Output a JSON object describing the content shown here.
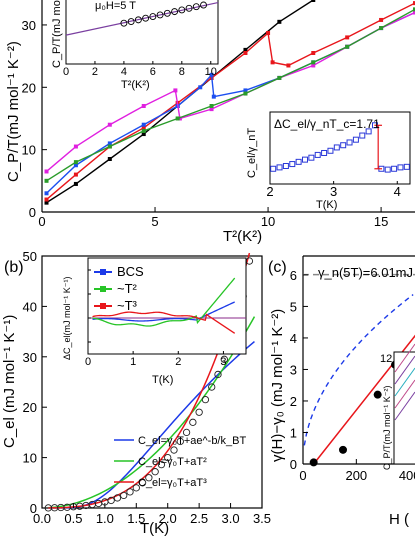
{
  "chart_data": [
    {
      "panel": "a",
      "type": "scatter",
      "xlabel": "T²(K²)",
      "ylabel": "C_P/T(mJ mol⁻¹ K⁻²)",
      "xlim": [
        0,
        16.5
      ],
      "ylim": [
        0,
        34
      ],
      "xticks": [
        "0",
        "5",
        "10",
        "15"
      ],
      "yticks": [
        "0",
        "10",
        "20",
        "30"
      ],
      "series": [
        {
          "color": "#000000",
          "x": [
            0.2,
            1.5,
            3,
            4.5,
            6,
            7.5,
            9,
            10.5,
            12,
            13.5
          ],
          "y": [
            1.5,
            4.5,
            8.5,
            12.5,
            17,
            21.5,
            26,
            30.5,
            34,
            38
          ]
        },
        {
          "color": "#e8161b",
          "x": [
            0.2,
            1.5,
            3,
            4.5,
            6,
            7.5,
            9,
            10,
            10.2,
            10.9,
            12,
            13.5,
            15,
            16.5
          ],
          "y": [
            2,
            6,
            10.5,
            13.5,
            17.5,
            21.5,
            25.5,
            28.7,
            24,
            23.5,
            25.5,
            28,
            30.8,
            33.5
          ]
        },
        {
          "color": "#1c4ff0",
          "x": [
            0.2,
            1.5,
            3,
            4.5,
            6,
            7,
            7.5,
            7.6,
            9,
            10.5,
            12,
            13.5,
            15,
            16.5
          ],
          "y": [
            3,
            7.5,
            11,
            14,
            17,
            20,
            22,
            18.5,
            19.5,
            21.5,
            24,
            26.5,
            29.5,
            32
          ]
        },
        {
          "color": "#e020e0",
          "x": [
            0.2,
            1.5,
            3,
            4.5,
            5.9,
            6.1,
            7.5,
            9,
            10.5,
            12,
            13.5,
            15,
            16.5
          ],
          "y": [
            6.5,
            10.5,
            14,
            17,
            19.5,
            15,
            16.5,
            19,
            21.5,
            23.5,
            26.5,
            29.5,
            32
          ]
        },
        {
          "color": "#2a9c2a",
          "x": [
            0.2,
            1.5,
            3,
            4.5,
            6,
            7.5,
            9,
            10.5,
            12,
            13.5,
            15,
            16.5
          ],
          "y": [
            5,
            8,
            10.5,
            13,
            15,
            17,
            19,
            21.5,
            24,
            26.5,
            29.5,
            32.5
          ]
        }
      ],
      "inset_top_left": {
        "label": "μ₀H=5 T",
        "xlabel": "T²(K²)",
        "ylabel": "C_P/T(mJ mol",
        "xticks": [
          "0",
          "2",
          "4",
          "6",
          "8",
          "10"
        ],
        "circles_x": [
          4,
          4.5,
          5,
          5.5,
          6,
          6.5,
          7,
          7.5,
          8,
          8.5,
          9,
          9.5
        ],
        "circles_y": [
          9.9,
          10.3,
          10.7,
          11.1,
          11.5,
          11.9,
          12.3,
          12.7,
          13.1,
          13.5,
          13.9,
          14.3
        ]
      },
      "inset_bottom_right": {
        "label": "ΔC_el/γ_nT_c=1.71",
        "xlabel": "T(K)",
        "ylabel": "C_el/γ_nT",
        "xticks": [
          "2",
          "3",
          "4"
        ],
        "x": [
          2.05,
          2.15,
          2.25,
          2.35,
          2.45,
          2.55,
          2.65,
          2.75,
          2.85,
          2.95,
          3.05,
          3.15,
          3.25,
          3.35,
          3.45,
          3.55,
          3.65,
          3.75,
          3.85,
          3.95,
          4.05,
          4.15
        ],
        "y": [
          1.05,
          1.1,
          1.15,
          1.22,
          1.3,
          1.38,
          1.45,
          1.55,
          1.62,
          1.7,
          1.82,
          1.9,
          2.0,
          2.1,
          2.25,
          2.4,
          2.62,
          1.05,
          1.02,
          1.05,
          1.1,
          1.12
        ]
      }
    },
    {
      "panel": "b",
      "type": "scatter",
      "xlabel": "T(K)",
      "ylabel": "C_el (mJ mol⁻¹ K⁻¹)",
      "xlim": [
        0,
        3.5
      ],
      "ylim": [
        0,
        50
      ],
      "xticks": [
        "0.0",
        "0.5",
        "1.0",
        "1.5",
        "2.0",
        "2.5",
        "3.0",
        "3.5"
      ],
      "yticks": [
        "0",
        "10",
        "20",
        "30",
        "40",
        "50"
      ],
      "data_x": [
        0.1,
        0.2,
        0.3,
        0.4,
        0.5,
        0.6,
        0.7,
        0.8,
        0.9,
        1.0,
        1.1,
        1.2,
        1.3,
        1.4,
        1.5,
        1.6,
        1.7,
        1.8,
        1.9,
        2.0,
        2.1,
        2.2,
        2.3,
        2.4,
        2.5,
        2.6,
        2.7,
        2.8,
        2.9,
        3.0,
        3.1,
        3.2,
        3.3
      ],
      "data_y": [
        0.02,
        0.05,
        0.1,
        0.15,
        0.25,
        0.35,
        0.5,
        0.7,
        0.9,
        1.2,
        1.5,
        2,
        2.5,
        3.2,
        4,
        5,
        6,
        7.2,
        8.6,
        10,
        11.5,
        13.2,
        15,
        17,
        19,
        21.5,
        24,
        26.5,
        29.5,
        33,
        37,
        42,
        49
      ],
      "fits": [
        {
          "name": "C_el=γ₀T+ae^-b/k_BT",
          "color": "#1c3ae8"
        },
        {
          "name": "C_el=γ₀T+aT²",
          "color": "#27c427"
        },
        {
          "name": "C_el=γ₀T+aT³",
          "color": "#e8161b"
        }
      ],
      "inset": {
        "ylabel": "ΔC_el(mJ mol⁻¹ K⁻¹)",
        "xlabel": "T(K)",
        "xticks": [
          "0",
          "1",
          "2",
          "3"
        ],
        "yticks": [
          "-4",
          "0",
          "4",
          "8"
        ],
        "legend": [
          "BCS",
          "~T²",
          "~T³"
        ],
        "legend_colors": [
          "#1c3ae8",
          "#27c427",
          "#e8161b"
        ]
      }
    },
    {
      "panel": "c",
      "type": "scatter",
      "annotation": "γ_n(5T)=6.01mJ m",
      "xlabel": "H (",
      "ylabel": "γ(H)−γ₀ (mJ mol⁻¹ K⁻²)",
      "xticks": [
        "0",
        "200",
        "400"
      ],
      "yticks": [
        "0",
        "1",
        "2",
        "3",
        "4",
        "5",
        "6"
      ],
      "x": [
        40,
        150,
        280,
        345,
        440,
        520
      ],
      "y": [
        0.05,
        0.45,
        2.2,
        3.15,
        4.15,
        5.15
      ],
      "inset": {
        "ylabel": "C_P/T(mJ mol⁻¹ K⁻²)",
        "ytick": "12"
      }
    }
  ],
  "labels": {
    "panel_b": "(b)",
    "panel_c": "(c)",
    "inset_a_field": "μ₀H=5 T",
    "inset_a_ylab": "C_P/T(mJ mol",
    "inset_a_xlab": "T²(K²)",
    "inset_a2_ratio": "ΔC_el/γ_nT_c=1.71",
    "inset_a2_ylab": "C_el/γ_nT",
    "inset_a2_xlab": "T(K)",
    "a_xlab": "T²(K²)",
    "a_ylab": "C_P/T(mJ mol⁻¹ K⁻²)",
    "b_xlab": "T(K)",
    "b_ylab": "C_el (mJ mol⁻¹ K⁻¹)",
    "b_inset_ylab": "ΔC_el(mJ mol⁻¹ K⁻¹)",
    "b_inset_xlab": "T(K)",
    "c_xlab": "H (",
    "c_ylab": "γ(H)−γ₀ (mJ mol⁻¹ K⁻²)",
    "c_annot": "γ_n(5T)=6.01mJ m",
    "c_inset_ylab": "C_P/T(mJ mol⁻¹ K⁻²)",
    "c_inset_tick": "12"
  }
}
